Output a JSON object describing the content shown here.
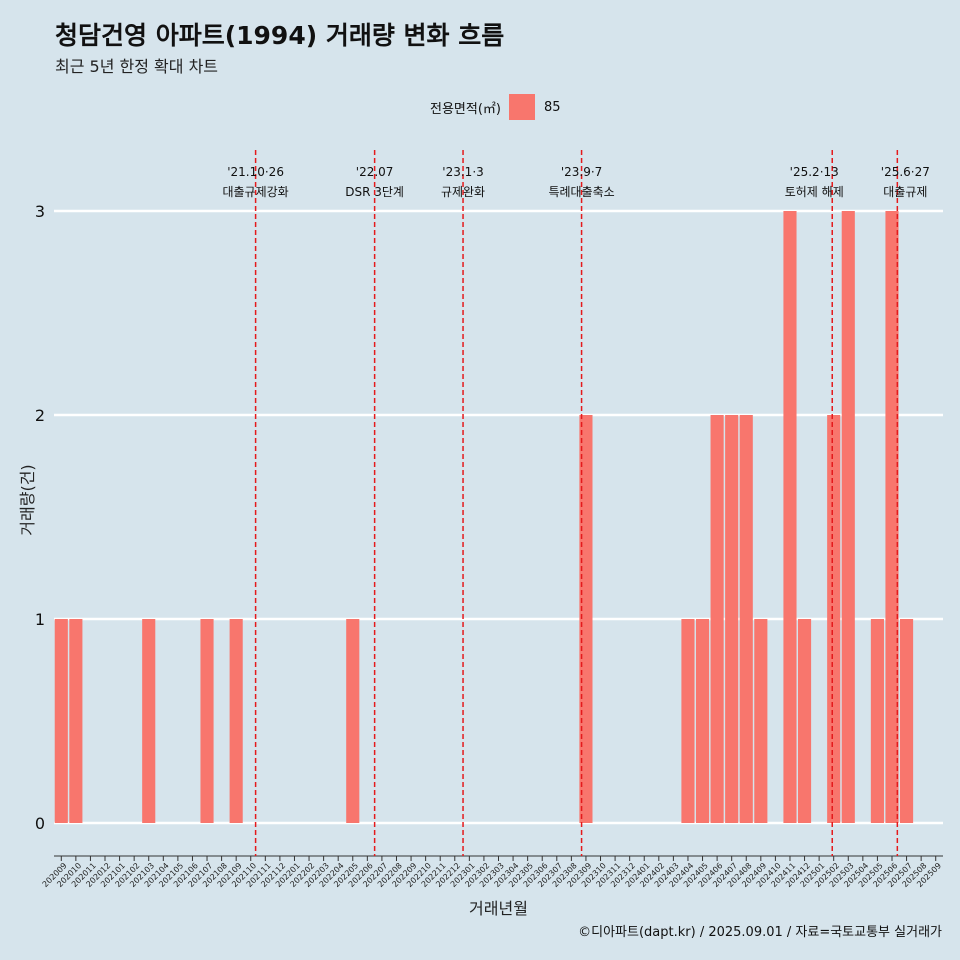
{
  "header": {
    "title": "청담건영 아파트(1994) 거래량 변화 흐름",
    "subtitle": "최근 5년 한정 확대 차트"
  },
  "legend": {
    "title": "전용면적(㎡)",
    "label": "85",
    "color": "#F8766D"
  },
  "caption": "©디아파트(dapt.kr) / 2025.09.01 / 자료=국토교통부 실거래가",
  "chart_data": {
    "type": "bar",
    "title": "청담건영 아파트(1994) 거래량 변화 흐름",
    "subtitle": "최근 5년 한정 확대 차트",
    "xlabel": "거래년월",
    "ylabel": "거래량(건)",
    "ylim": [
      0,
      3
    ],
    "yticks": [
      0,
      1,
      2,
      3
    ],
    "grid": "horizontal",
    "legend_position": "top",
    "bar_color": "#F8766D",
    "categories": [
      "202009",
      "202010",
      "202011",
      "202012",
      "202101",
      "202102",
      "202103",
      "202104",
      "202105",
      "202106",
      "202107",
      "202108",
      "202109",
      "202110",
      "202111",
      "202112",
      "202201",
      "202202",
      "202203",
      "202204",
      "202205",
      "202206",
      "202207",
      "202208",
      "202209",
      "202210",
      "202211",
      "202212",
      "202301",
      "202302",
      "202303",
      "202304",
      "202305",
      "202306",
      "202307",
      "202308",
      "202309",
      "202310",
      "202311",
      "202312",
      "202401",
      "202402",
      "202403",
      "202404",
      "202405",
      "202406",
      "202407",
      "202408",
      "202409",
      "202410",
      "202411",
      "202412",
      "202501",
      "202502",
      "202503",
      "202504",
      "202505",
      "202506",
      "202507",
      "202508",
      "202509"
    ],
    "series": [
      {
        "name": "85",
        "values": [
          1,
          1,
          0,
          0,
          0,
          0,
          1,
          0,
          0,
          0,
          1,
          0,
          1,
          0,
          0,
          0,
          0,
          0,
          0,
          0,
          1,
          0,
          0,
          0,
          0,
          0,
          0,
          0,
          0,
          0,
          0,
          0,
          0,
          0,
          0,
          0,
          2,
          0,
          0,
          0,
          0,
          0,
          0,
          1,
          1,
          2,
          2,
          2,
          1,
          0,
          3,
          1,
          0,
          2,
          3,
          0,
          1,
          3,
          1,
          0,
          0
        ]
      }
    ],
    "annotations": [
      {
        "date": "2021-10-26",
        "label_top": "'21.10·26",
        "label_bottom": "대출규제강화"
      },
      {
        "date": "2022-07",
        "label_top": "'22.07",
        "label_bottom": "DSR 3단계"
      },
      {
        "date": "2023-01-03",
        "label_top": "'23.1·3",
        "label_bottom": "규제완화"
      },
      {
        "date": "2023-09-07",
        "label_top": "'23.9·7",
        "label_bottom": "특례대출축소"
      },
      {
        "date": "2025-02-13",
        "label_top": "'25.2·13",
        "label_bottom": "토허제 해제"
      },
      {
        "date": "2025-06-27",
        "label_top": "'25.6·27",
        "label_bottom": "대출규제"
      }
    ],
    "annotation_line_color": "#e41a1c"
  }
}
